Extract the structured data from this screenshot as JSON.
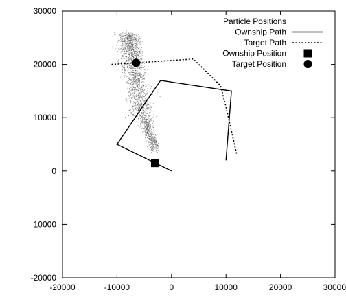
{
  "chart_data": {
    "type": "scatter",
    "title": "",
    "xlabel": "",
    "ylabel": "",
    "xlim": [
      -20000,
      30000
    ],
    "ylim": [
      -20000,
      30000
    ],
    "x_ticks": [
      -20000,
      -10000,
      0,
      10000,
      20000,
      30000
    ],
    "y_ticks": [
      -20000,
      -10000,
      0,
      10000,
      20000,
      30000
    ],
    "x_tick_labels": [
      "-20000",
      "-10000",
      "0",
      "10000",
      "20000",
      "30000"
    ],
    "y_tick_labels": [
      "-20000",
      "-10000",
      "0",
      "10000",
      "20000",
      "30000"
    ],
    "grid": false,
    "legend_position": "top-right",
    "series": [
      {
        "name": "Particle Positions",
        "kind": "particle-cloud",
        "color": "#000000",
        "center_path": [
          [
            -8000,
            25500
          ],
          [
            -5500,
            11000
          ],
          [
            -3000,
            4000
          ]
        ],
        "spread": 1000,
        "count": 2600
      },
      {
        "name": "Ownship Path",
        "kind": "line",
        "style": "solid",
        "color": "#000000",
        "points": [
          [
            0,
            0
          ],
          [
            -10000,
            5000
          ],
          [
            -2000,
            17000
          ],
          [
            11000,
            15000
          ],
          [
            10000,
            2000
          ]
        ]
      },
      {
        "name": "Target Path",
        "kind": "line",
        "style": "dotted",
        "color": "#000000",
        "points": [
          [
            -11000,
            20000
          ],
          [
            4000,
            21000
          ],
          [
            9000,
            16000
          ],
          [
            10000,
            12000
          ],
          [
            12000,
            3000
          ]
        ]
      },
      {
        "name": "Ownship Position",
        "kind": "marker",
        "marker": "square",
        "color": "#000000",
        "points": [
          [
            -3000,
            1500
          ]
        ]
      },
      {
        "name": "Target Position",
        "kind": "marker",
        "marker": "circle",
        "color": "#000000",
        "points": [
          [
            -6500,
            20300
          ]
        ]
      }
    ]
  }
}
